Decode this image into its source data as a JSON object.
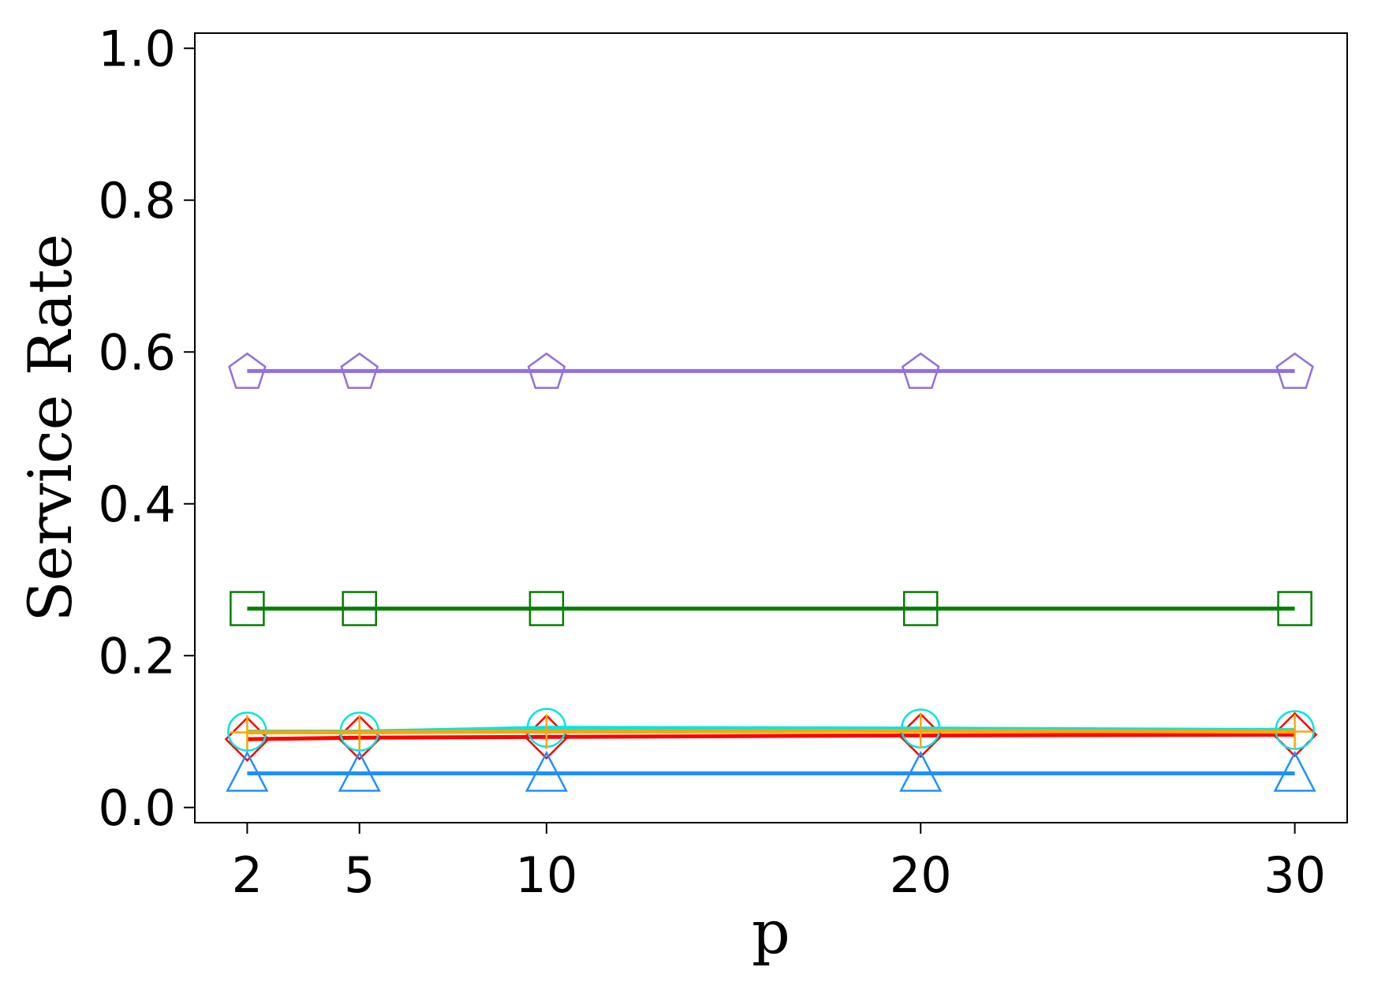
{
  "chart_data": {
    "type": "line",
    "title": "",
    "xlabel": "p",
    "ylabel": "Service Rate",
    "x": [
      2,
      5,
      10,
      20,
      30
    ],
    "xticks": [
      "2",
      "5",
      "10",
      "20",
      "30"
    ],
    "yticks": [
      "0.0",
      "0.2",
      "0.4",
      "0.6",
      "0.8",
      "1.0"
    ],
    "xlim": [
      0.6,
      31.4
    ],
    "ylim": [
      -0.02,
      1.02
    ],
    "grid": false,
    "series": [
      {
        "marker": "pentagon",
        "color": "#9370db",
        "values": [
          0.575,
          0.575,
          0.575,
          0.575,
          0.575
        ]
      },
      {
        "marker": "square",
        "color": "#008000",
        "values": [
          0.262,
          0.262,
          0.262,
          0.262,
          0.262
        ]
      },
      {
        "marker": "diamond",
        "color": "#ff0000",
        "values": [
          0.09,
          0.092,
          0.093,
          0.095,
          0.096
        ]
      },
      {
        "marker": "circle",
        "color": "#00e5e5",
        "values": [
          0.1,
          0.1,
          0.105,
          0.104,
          0.102
        ]
      },
      {
        "marker": "plus",
        "color": "#ffa500",
        "values": [
          0.099,
          0.099,
          0.1,
          0.101,
          0.1
        ]
      },
      {
        "marker": "triangle",
        "color": "#1e90ff",
        "values": [
          0.045,
          0.045,
          0.045,
          0.045,
          0.045
        ]
      }
    ]
  }
}
